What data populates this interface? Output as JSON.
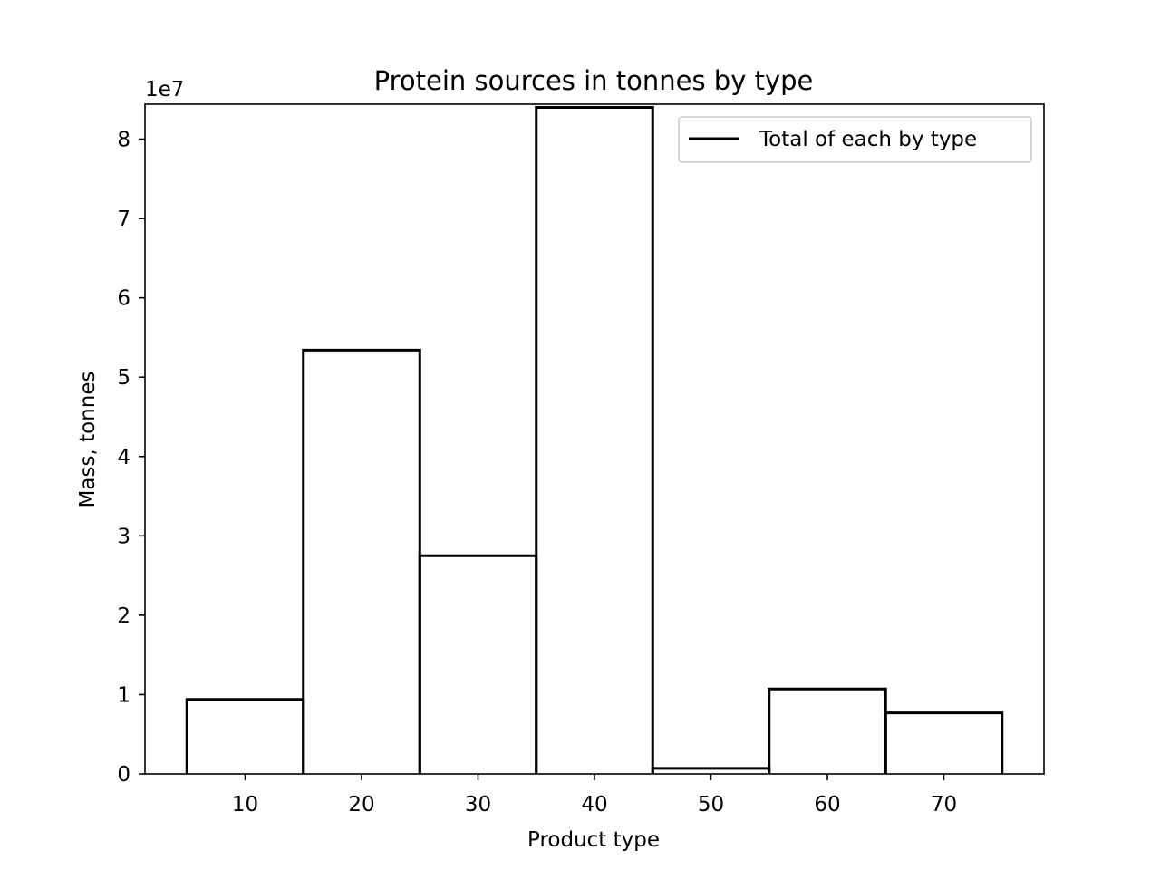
{
  "chart_data": {
    "type": "histogram-step",
    "title": "Protein sources in tonnes by type",
    "xlabel": "Product type",
    "ylabel": "Mass, tonnes",
    "y_offset_text": "1e7",
    "y_scale_factor": 10000000,
    "xlim": [
      1.4,
      78.6
    ],
    "ylim": [
      0,
      84400000
    ],
    "x_ticks": [
      10,
      20,
      30,
      40,
      50,
      60,
      70
    ],
    "y_ticks": [
      0,
      1,
      2,
      3,
      4,
      5,
      6,
      7,
      8
    ],
    "bins": [
      {
        "start": 5,
        "end": 15,
        "value": 9400000
      },
      {
        "start": 15,
        "end": 25,
        "value": 53400000
      },
      {
        "start": 25,
        "end": 35,
        "value": 27500000
      },
      {
        "start": 35,
        "end": 45,
        "value": 84000000
      },
      {
        "start": 45,
        "end": 55,
        "value": 700000
      },
      {
        "start": 55,
        "end": 65,
        "value": 10700000
      },
      {
        "start": 65,
        "end": 75,
        "value": 7700000
      }
    ],
    "series": [
      {
        "name": "Total of each by type",
        "color": "#000000"
      }
    ],
    "legend": {
      "location": "upper right"
    },
    "grid": false
  }
}
